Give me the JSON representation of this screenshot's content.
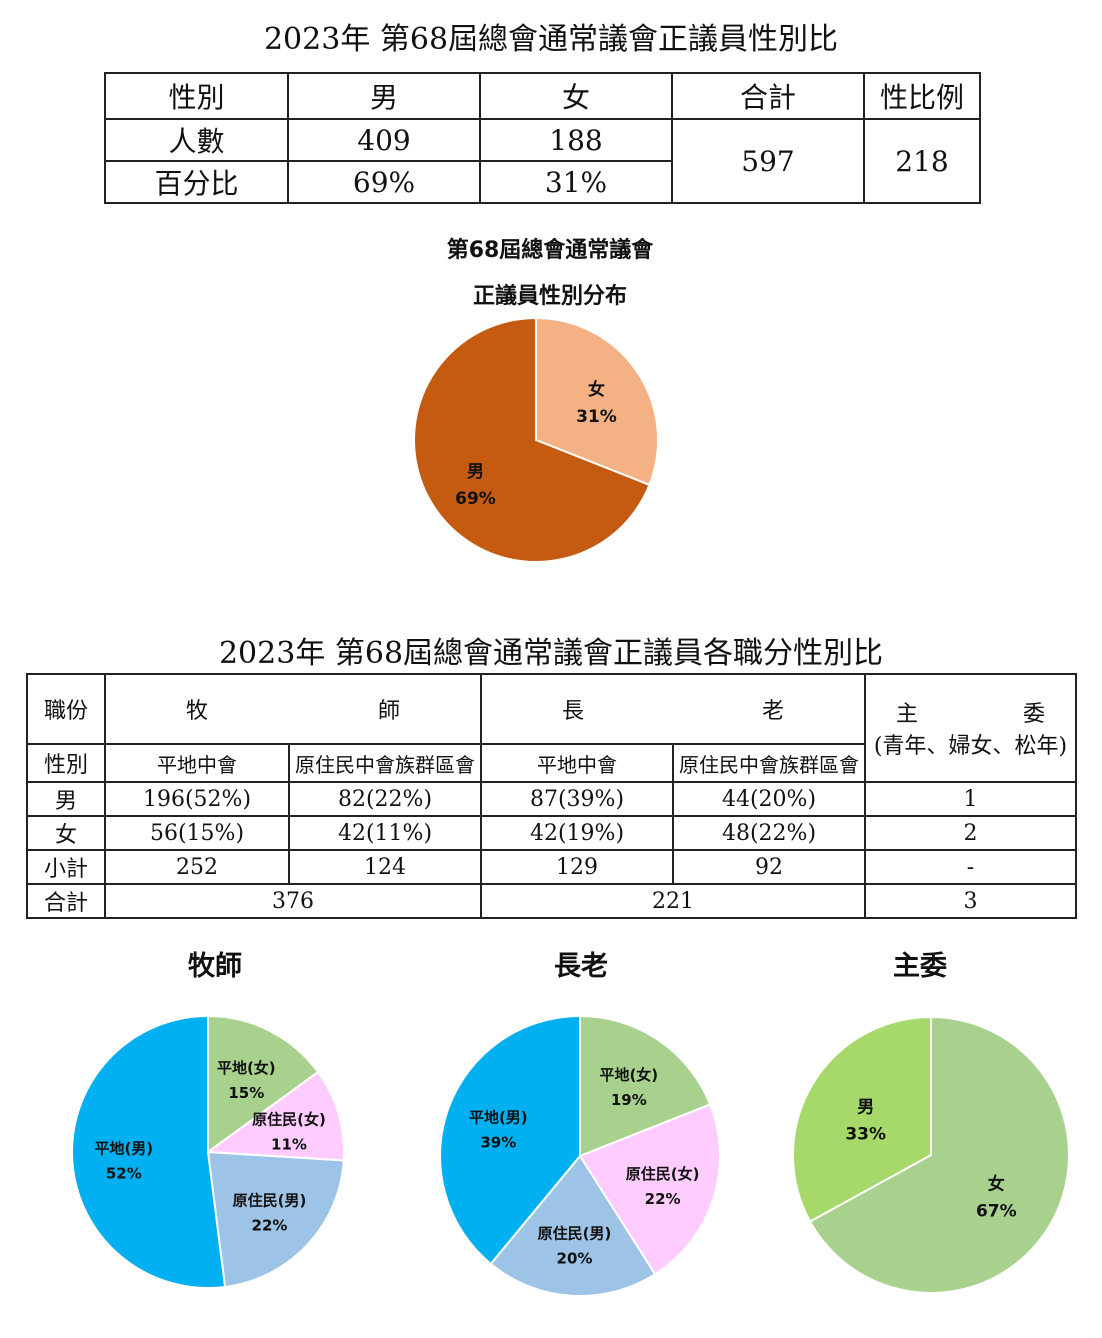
{
  "table1": {
    "title": "2023年 第68屆總會通常議會正議員性別比",
    "headers": [
      "性別",
      "男",
      "女",
      "合計",
      "性比例"
    ],
    "rows": [
      {
        "label": "人數",
        "male": "409",
        "female": "188"
      },
      {
        "label": "百分比",
        "male": "69%",
        "female": "31%"
      }
    ],
    "total": "597",
    "ratio": "218"
  },
  "table2": {
    "title": "2023年 第68屆總會通常議會正議員各職分性別比",
    "h_role": "職份",
    "h_pastor": [
      "牧",
      "師"
    ],
    "h_elder": [
      "長",
      "老"
    ],
    "h_committee": [
      "主",
      "委"
    ],
    "h_committee_sub": "(青年、婦女、松年)",
    "h_gender": "性別",
    "sub_cols": [
      "平地中會",
      "原住民中會族群區會",
      "平地中會",
      "原住民中會族群區會"
    ],
    "rows": [
      {
        "label": "男",
        "cells": [
          "196(52%)",
          "82(22%)",
          "87(39%)",
          "44(20%)"
        ],
        "committee": "1"
      },
      {
        "label": "女",
        "cells": [
          "56(15%)",
          "42(11%)",
          "42(19%)",
          "48(22%)"
        ],
        "committee": "2"
      },
      {
        "label": "小計",
        "cells": [
          "252",
          "124",
          "129",
          "92"
        ],
        "committee": "-"
      }
    ],
    "total_label": "合計",
    "totals": [
      "376",
      "221",
      "3"
    ]
  },
  "chart_data": [
    {
      "type": "pie",
      "title": [
        "第68屆總會通常議會",
        "正議員性別分布"
      ],
      "slices": [
        {
          "label": "女",
          "value": 31,
          "display": "31%",
          "color": "#f4b183"
        },
        {
          "label": "男",
          "value": 69,
          "display": "69%",
          "color": "#c55a11"
        }
      ]
    },
    {
      "type": "pie",
      "title": "牧師",
      "slices": [
        {
          "label": "平地(女)",
          "value": 15,
          "display": "15%",
          "color": "#a9d18e"
        },
        {
          "label": "原住民(女)",
          "value": 11,
          "display": "11%",
          "color": "#ffccff"
        },
        {
          "label": "原住民(男)",
          "value": 22,
          "display": "22%",
          "color": "#9dc3e6"
        },
        {
          "label": "平地(男)",
          "value": 52,
          "display": "52%",
          "color": "#00b0f0"
        }
      ]
    },
    {
      "type": "pie",
      "title": "長老",
      "slices": [
        {
          "label": "平地(女)",
          "value": 19,
          "display": "19%",
          "color": "#a9d18e"
        },
        {
          "label": "原住民(女)",
          "value": 22,
          "display": "22%",
          "color": "#ffccff"
        },
        {
          "label": "原住民(男)",
          "value": 20,
          "display": "20%",
          "color": "#9dc3e6"
        },
        {
          "label": "平地(男)",
          "value": 39,
          "display": "39%",
          "color": "#00b0f0"
        }
      ]
    },
    {
      "type": "pie",
      "title": "主委",
      "slices": [
        {
          "label": "女",
          "value": 67,
          "display": "67%",
          "color": "#a9d18e"
        },
        {
          "label": "男",
          "value": 33,
          "display": "33%",
          "color": "#a6d96a"
        }
      ]
    }
  ]
}
